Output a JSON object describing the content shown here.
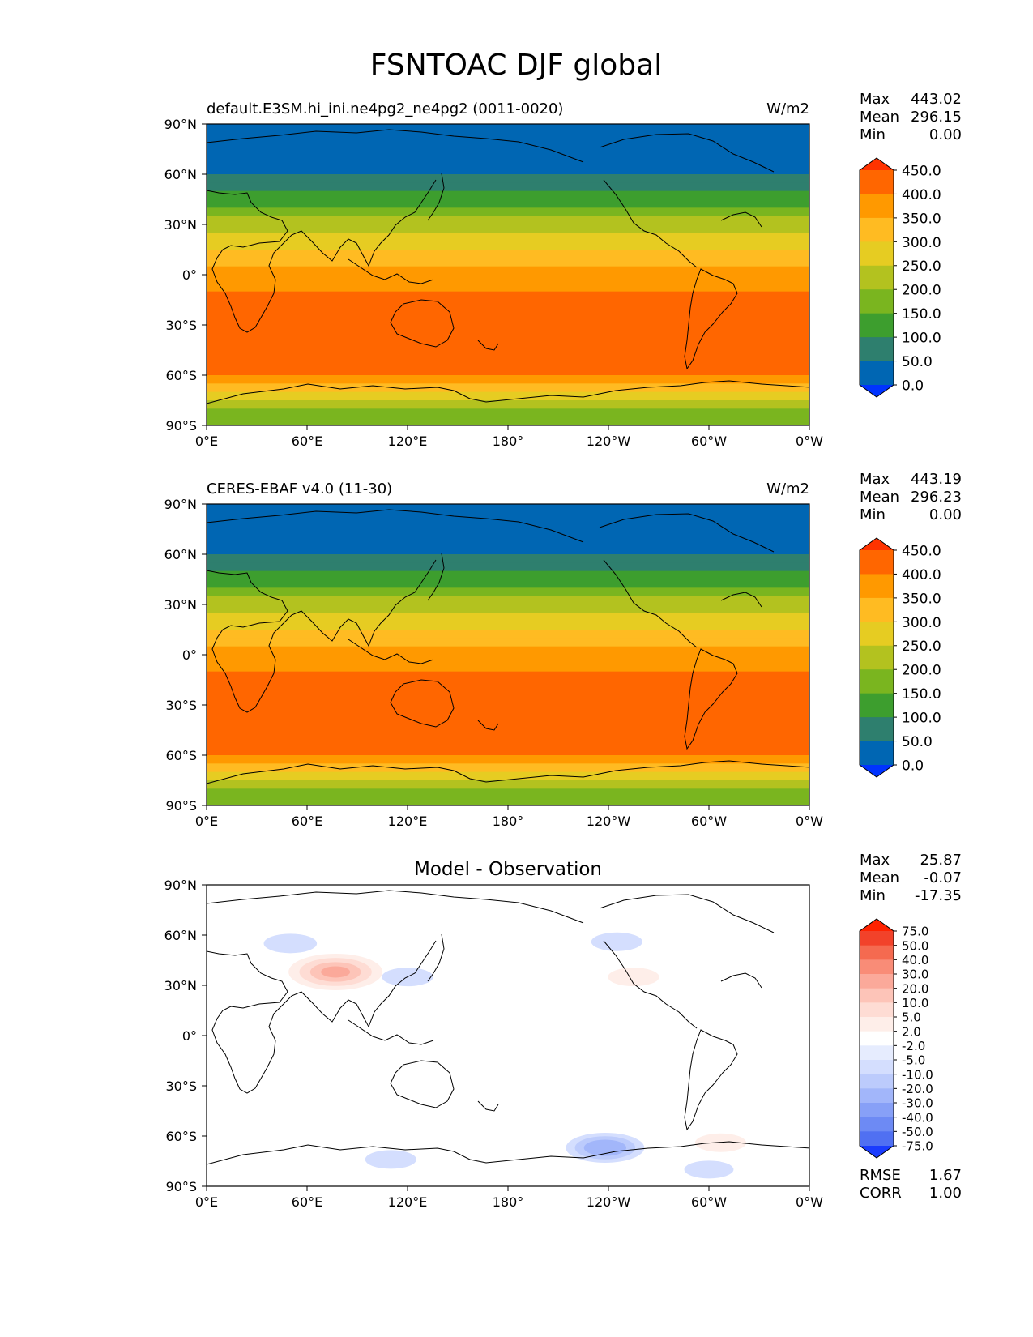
{
  "figure_title": "FSNTOAC DJF global",
  "chart_data": [
    {
      "type": "heatmap",
      "panel": "test",
      "title_left": "default.E3SM.hi_ini.ne4pg2_ne4pg2 (0011-0020)",
      "title_right": "W/m2",
      "title_center": "",
      "x_ticks": [
        "0°E",
        "60°E",
        "120°E",
        "180°",
        "120°W",
        "60°W",
        "0°W"
      ],
      "y_ticks": [
        "90°N",
        "60°N",
        "30°N",
        "0°",
        "30°S",
        "60°S",
        "90°S"
      ],
      "xlim": [
        0,
        360
      ],
      "ylim": [
        -90,
        90
      ],
      "stats": {
        "max_label": "Max",
        "max": "443.02",
        "mean_label": "Mean",
        "mean": "296.15",
        "min_label": "Min",
        "min": "0.00"
      },
      "zonal_profile": {
        "lat": [
          90,
          85,
          80,
          75,
          70,
          65,
          60,
          55,
          50,
          45,
          40,
          35,
          30,
          25,
          20,
          15,
          10,
          5,
          0,
          -5,
          -10,
          -15,
          -20,
          -25,
          -30,
          -35,
          -40,
          -45,
          -50,
          -55,
          -60,
          -65,
          -70,
          -75,
          -80,
          -85,
          -90
        ],
        "value": [
          0,
          10,
          35,
          35,
          35,
          40,
          60,
          80,
          115,
          145,
          175,
          205,
          235,
          265,
          285,
          310,
          330,
          355,
          370,
          390,
          405,
          415,
          420,
          425,
          430,
          430,
          430,
          425,
          420,
          410,
          390,
          330,
          280,
          220,
          180,
          160,
          150
        ]
      },
      "colorbar": {
        "levels": [
          "450.0",
          "400.0",
          "350.0",
          "300.0",
          "250.0",
          "200.0",
          "150.0",
          "100.0",
          "50.0",
          "0.0"
        ],
        "colors": [
          "#ff3300",
          "#ff6600",
          "#ff9900",
          "#ffbb22",
          "#e6cc22",
          "#b3c21f",
          "#7ab51f",
          "#3d9e2e",
          "#2e7f6e",
          "#0066b3",
          "#0033ff"
        ]
      }
    },
    {
      "type": "heatmap",
      "panel": "reference",
      "title_left": "CERES-EBAF v4.0 (11-30)",
      "title_right": "W/m2",
      "title_center": "",
      "x_ticks": [
        "0°E",
        "60°E",
        "120°E",
        "180°",
        "120°W",
        "60°W",
        "0°W"
      ],
      "y_ticks": [
        "90°N",
        "60°N",
        "30°N",
        "0°",
        "30°S",
        "60°S",
        "90°S"
      ],
      "xlim": [
        0,
        360
      ],
      "ylim": [
        -90,
        90
      ],
      "stats": {
        "max_label": "Max",
        "max": "443.19",
        "mean_label": "Mean",
        "mean": "296.23",
        "min_label": "Min",
        "min": "0.00"
      },
      "zonal_profile": {
        "lat": [
          90,
          85,
          80,
          75,
          70,
          65,
          60,
          55,
          50,
          45,
          40,
          35,
          30,
          25,
          20,
          15,
          10,
          5,
          0,
          -5,
          -10,
          -15,
          -20,
          -25,
          -30,
          -35,
          -40,
          -45,
          -50,
          -55,
          -60,
          -65,
          -70,
          -75,
          -80,
          -85,
          -90
        ],
        "value": [
          0,
          10,
          35,
          35,
          35,
          40,
          60,
          80,
          115,
          145,
          175,
          205,
          235,
          265,
          285,
          310,
          330,
          355,
          370,
          390,
          405,
          415,
          420,
          425,
          430,
          430,
          430,
          425,
          420,
          410,
          390,
          330,
          280,
          220,
          180,
          160,
          150
        ]
      },
      "colorbar": {
        "levels": [
          "450.0",
          "400.0",
          "350.0",
          "300.0",
          "250.0",
          "200.0",
          "150.0",
          "100.0",
          "50.0",
          "0.0"
        ],
        "colors": [
          "#ff3300",
          "#ff6600",
          "#ff9900",
          "#ffbb22",
          "#e6cc22",
          "#b3c21f",
          "#7ab51f",
          "#3d9e2e",
          "#2e7f6e",
          "#0066b3",
          "#0033ff"
        ]
      }
    },
    {
      "type": "heatmap",
      "panel": "difference",
      "title_left": "",
      "title_right": "",
      "title_center": "Model - Observation",
      "x_ticks": [
        "0°E",
        "60°E",
        "120°E",
        "180°",
        "120°W",
        "60°W",
        "0°W"
      ],
      "y_ticks": [
        "90°N",
        "60°N",
        "30°N",
        "0°",
        "30°S",
        "60°S",
        "90°S"
      ],
      "xlim": [
        0,
        360
      ],
      "ylim": [
        -90,
        90
      ],
      "stats": {
        "max_label": "Max",
        "max": "25.87",
        "mean_label": "Mean",
        "mean": "-0.07",
        "min_label": "Min",
        "min": "-17.35"
      },
      "metrics": {
        "rmse_label": "RMSE",
        "rmse": "1.67",
        "corr_label": "CORR",
        "corr": "1.00"
      },
      "anomalies": [
        {
          "lon": 77,
          "lat": 38,
          "value": 25
        },
        {
          "lon": 120,
          "lat": 35,
          "value": -3
        },
        {
          "lon": 50,
          "lat": 55,
          "value": -4
        },
        {
          "lon": 245,
          "lat": 56,
          "value": -3
        },
        {
          "lon": 255,
          "lat": 35,
          "value": 3
        },
        {
          "lon": 238,
          "lat": -67,
          "value": -17
        },
        {
          "lon": 110,
          "lat": -74,
          "value": -3
        },
        {
          "lon": 300,
          "lat": -80,
          "value": -2
        },
        {
          "lon": 307,
          "lat": -64,
          "value": 3
        }
      ],
      "colorbar": {
        "levels": [
          "75.0",
          "50.0",
          "40.0",
          "30.0",
          "20.0",
          "10.0",
          "5.0",
          "2.0",
          "-2.0",
          "-5.0",
          "-10.0",
          "-20.0",
          "-30.0",
          "-40.0",
          "-50.0",
          "-75.0"
        ],
        "colors": [
          "#ff2200",
          "#f2422a",
          "#f56a50",
          "#f98c77",
          "#fba99a",
          "#fdc4b8",
          "#fedcd4",
          "#feeee9",
          "#ffffff",
          "#e6ecfe",
          "#d4defe",
          "#bccbfc",
          "#a2b6fa",
          "#87a0f7",
          "#6d8af4",
          "#5070f2",
          "#1a3cfe"
        ]
      }
    }
  ]
}
